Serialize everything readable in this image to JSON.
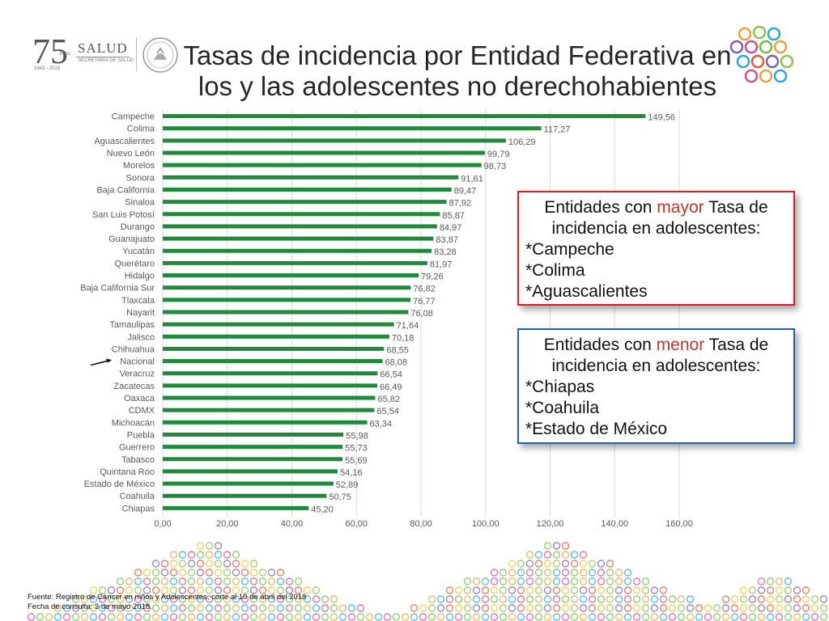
{
  "header": {
    "anniversary_number": "75",
    "anniversary_word": "AÑOS",
    "anniversary_years": "1943 - 2018",
    "salud_label": "SALUD",
    "secretaria_label": "SECRETARÍA DE SALUD",
    "title_line1": "Tasas de incidencia por Entidad Federativa en",
    "title_line2": "los y las adolescentes no derechohabientes"
  },
  "colors": {
    "bar": "#1e8a3a",
    "grid": "#d9d9d9",
    "axis_text": "#595959",
    "red_box": "#e31a1c",
    "blue_box": "#1f5fb8",
    "highlight": "#c0392b"
  },
  "chart_data": {
    "type": "bar",
    "orientation": "horizontal",
    "categories": [
      "Campeche",
      "Colima",
      "Aguascalientes",
      "Nuevo León",
      "Morelos",
      "Sonora",
      "Baja California",
      "Sinaloa",
      "San Luis Potosí",
      "Durango",
      "Guanajuato",
      "Yucatán",
      "Querétaro",
      "Hidalgo",
      "Baja California Sur",
      "Tlaxcala",
      "Nayarit",
      "Tamaulipas",
      "Jalisco",
      "Chihuahua",
      "Nacional",
      "Veracruz",
      "Zacatecas",
      "Oaxaca",
      "CDMX",
      "Michoacán",
      "Puebla",
      "Guerrero",
      "Tabasco",
      "Quintana Roo",
      "Estado de México",
      "Coahuila",
      "Chiapas"
    ],
    "values": [
      149.56,
      117.27,
      106.29,
      99.79,
      98.73,
      91.61,
      89.47,
      87.92,
      85.87,
      84.97,
      83.87,
      83.28,
      81.97,
      79.26,
      76.82,
      76.77,
      76.08,
      71.64,
      70.18,
      68.55,
      68.08,
      66.54,
      66.49,
      65.82,
      65.54,
      63.34,
      55.98,
      55.73,
      55.69,
      54.16,
      52.89,
      50.75,
      45.2
    ],
    "value_labels": [
      "149,56",
      "117,27",
      "106,29",
      "99,79",
      "98,73",
      "91,61",
      "89,47",
      "87,92",
      "85,87",
      "84,97",
      "83,87",
      "83,28",
      "81,97",
      "79,26",
      "76,82",
      "76,77",
      "76,08",
      "71,64",
      "70,18",
      "68,55",
      "68,08",
      "66,54",
      "66,49",
      "65,82",
      "65,54",
      "63,34",
      "55,98",
      "55,73",
      "55,69",
      "54,16",
      "52,89",
      "50,75",
      "45,20"
    ],
    "xlim": [
      0,
      160
    ],
    "xticks": [
      0,
      20,
      40,
      60,
      80,
      100,
      120,
      140,
      160
    ],
    "xtick_labels": [
      "0,00",
      "20,00",
      "40,00",
      "60,00",
      "80,00",
      "100,00",
      "120,00",
      "140,00",
      "160,00"
    ],
    "grid": true,
    "annotation_arrow_category": "Nacional"
  },
  "box_high": {
    "line1_pre": "Entidades con ",
    "line1_hl": "mayor",
    "line1_post": " Tasa de",
    "line2": "incidencia en adolescentes:",
    "items": [
      "*Campeche",
      "*Colima",
      "*Aguascalientes"
    ]
  },
  "box_low": {
    "line1_pre": "Entidades con ",
    "line1_hl": "menor",
    "line1_post": " Tasa de",
    "line2": "incidencia en adolescentes:",
    "items": [
      "*Chiapas",
      "*Coahuila",
      "*Estado de México"
    ]
  },
  "footer": {
    "source": "Fuente: Registro de Cáncer en niños y Adolescentes, corte al 10 de abril del 2018",
    "consult": "Fecha de consulta: 3 de mayo 2018."
  }
}
